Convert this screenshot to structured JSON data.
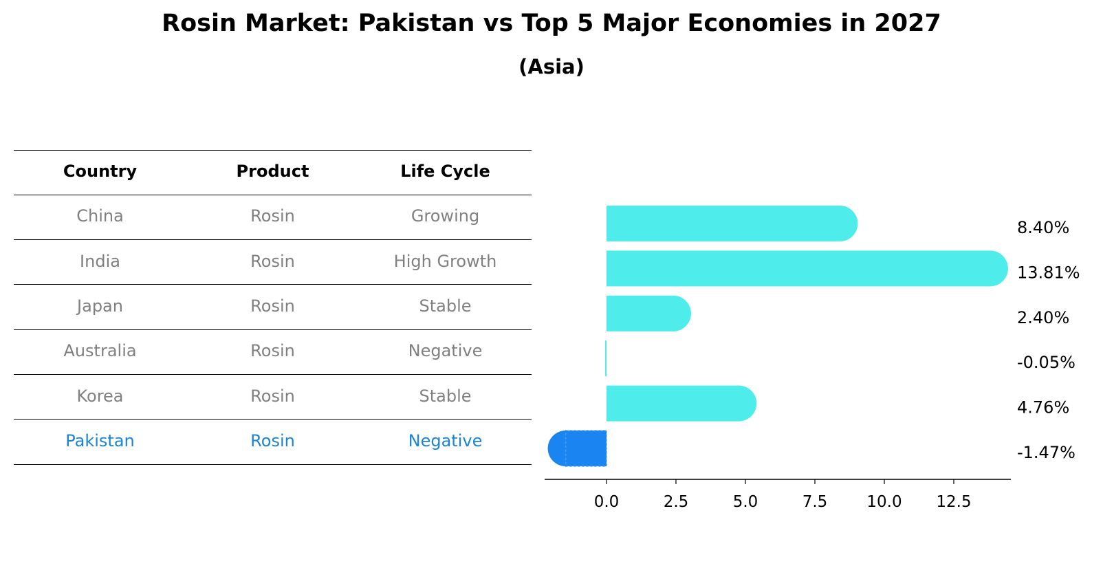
{
  "title": "Rosin Market: Pakistan vs Top 5 Major Economies in 2027",
  "subtitle": "(Asia)",
  "table": {
    "headers": [
      "Country",
      "Product",
      "Life Cycle"
    ],
    "rows": [
      [
        "China",
        "Rosin",
        "Growing"
      ],
      [
        "India",
        "Rosin",
        "High Growth"
      ],
      [
        "Japan",
        "Rosin",
        "Stable"
      ],
      [
        "Australia",
        "Rosin",
        "Negative"
      ],
      [
        "Korea",
        "Rosin",
        "Stable"
      ],
      [
        "Pakistan",
        "Rosin",
        "Negative"
      ]
    ],
    "highlight_row": 5
  },
  "colors": {
    "bar": "#4EECEA",
    "highlight": "#1A84F0",
    "body_text": "#808080",
    "highlight_text": "#1A84D6"
  },
  "chart_data": {
    "type": "bar",
    "orientation": "horizontal",
    "categories": [
      "China",
      "India",
      "Japan",
      "Australia",
      "Korea",
      "Pakistan"
    ],
    "values": [
      8.4,
      13.81,
      2.4,
      -0.05,
      4.76,
      -1.47
    ],
    "value_labels": [
      "8.40%",
      "13.81%",
      "2.40%",
      "-0.05%",
      "4.76%",
      "-1.47%"
    ],
    "xticks": [
      "0.0",
      "2.5",
      "5.0",
      "7.5",
      "10.0",
      "12.5"
    ],
    "xtick_values": [
      0,
      2.5,
      5,
      7.5,
      10,
      12.5
    ],
    "xlim": [
      -2.25,
      14.55
    ],
    "grid": false
  }
}
